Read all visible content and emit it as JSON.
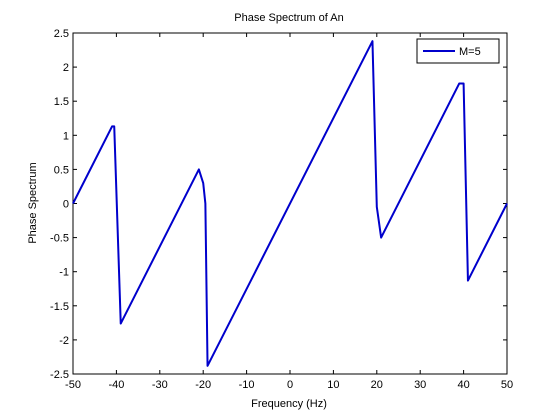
{
  "chart_data": {
    "type": "line",
    "title": "Phase Spectrum of An",
    "xlabel": "Frequency (Hz)",
    "ylabel": "Phase Spectrum",
    "xlim": [
      -50,
      50
    ],
    "ylim": [
      -2.5,
      2.5
    ],
    "xticks": [
      -50,
      -40,
      -30,
      -20,
      -10,
      0,
      10,
      20,
      30,
      40,
      50
    ],
    "yticks": [
      2.5,
      2,
      1.5,
      1,
      0.5,
      0,
      -0.5,
      -1,
      -1.5,
      -2,
      -2.5
    ],
    "grid": false,
    "legend_position": "top-right",
    "series": [
      {
        "name": "M=5",
        "color": "#0000cc",
        "x": [
          -50,
          -41,
          -40.5,
          -39,
          -21,
          -20,
          -19.5,
          -19,
          19,
          20,
          21,
          39,
          40,
          41,
          50
        ],
        "y": [
          0.0,
          1.13,
          1.13,
          -1.76,
          0.5,
          0.3,
          0.0,
          -2.38,
          2.38,
          -0.05,
          -0.5,
          1.76,
          1.76,
          -1.13,
          0.0
        ]
      }
    ]
  }
}
